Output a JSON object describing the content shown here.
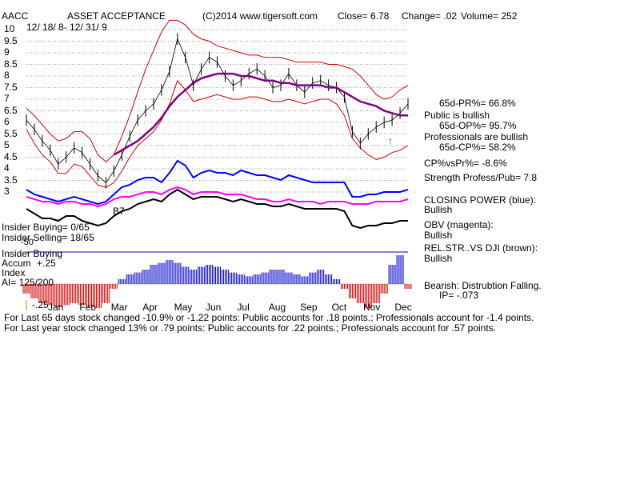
{
  "header": {
    "ticker": "AACC",
    "company": "ASSET ACCEPTANCE",
    "copyright": "(C)2014 www.tigersoft.com",
    "close": "Close=  6.78",
    "change": "Change= .02",
    "volume": "Volume= 252",
    "date_range": "12/ 18/ 8- 12/ 31/ 9"
  },
  "yaxis_ticks": [
    "10",
    "9.5",
    "9",
    "8.5",
    "8",
    "7.5",
    "7",
    "6.5",
    "6",
    "5.5",
    "5",
    "4.5",
    "4",
    "3.5",
    "3"
  ],
  "months": [
    "Jan",
    "Feb",
    "Mar",
    "Apr",
    "May",
    "Jun",
    "Jul",
    "Aug",
    "Sep",
    "Oct",
    "Nov",
    "Dec"
  ],
  "right_panel": {
    "pr": "65d-PR%= 66.8%",
    "public": "Public is bullish",
    "op": "65d-OP%= 95.7%",
    "professionals": "Professionals are bullish",
    "cp": "65d-CP%= 58.2%",
    "cpvspr": "CP%vsPr%= -8.6%",
    "strength": "Strength Profess/Pub= 7.8",
    "closing_power": "CLOSING POWER (blue):",
    "closing_power_val": "Bullish",
    "obv": "OBV (magenta):",
    "obv_val": "Bullish",
    "relstr": "REL.STR..VS DJI (brown):",
    "relstr_val": "Bullish",
    "bearish": "Bearish: Distrubtion Falling.",
    "ip": "IP= -.073"
  },
  "left_panel": {
    "insider_buying": "Insider Buying= 0/65",
    "insider_selling": "Insider Selling= 18/65",
    "insider_buying2": "Insider Buying",
    "accum": "Accum",
    "plus25": "+.25",
    "index": "Index",
    "ai": "AI= 125/200",
    "minus25": "-.25",
    "b7": "B7",
    "minus50": "-50"
  },
  "footer": {
    "line1": "For Last 65 days stock changed -10.9% or -1.22 points:  Public accounts for  .18 points.;  Professionals account for  -1.4 points.",
    "line2": "For Last year stock changed  13% or  .79 points:  Public accounts for  .22 points.;  Professionals account for  .57 points."
  },
  "colors": {
    "price": "#000000",
    "band": "#cc0000",
    "ma": "#800080",
    "closing_power": "#0000ff",
    "obv": "#ff00ff",
    "relstr": "#000000",
    "accum_pos": "#0000cc",
    "accum_neg": "#cc0000"
  },
  "chart_data": {
    "type": "line",
    "y_range": [
      3,
      10
    ],
    "price": [
      6.1,
      5.7,
      5.2,
      4.8,
      4.2,
      4.5,
      4.9,
      4.7,
      4.2,
      3.7,
      3.4,
      3.9,
      4.6,
      5.4,
      6.1,
      6.5,
      6.8,
      7.4,
      8.2,
      9.6,
      8.8,
      7.6,
      8.3,
      8.8,
      8.6,
      8.0,
      7.6,
      7.8,
      8.1,
      8.3,
      8.0,
      7.5,
      7.6,
      8.1,
      7.6,
      7.3,
      7.7,
      7.8,
      7.6,
      7.5,
      7.1,
      5.6,
      5.1,
      5.5,
      5.8,
      6.0,
      6.1,
      6.4,
      6.8
    ],
    "ma": [
      null,
      null,
      null,
      null,
      null,
      null,
      null,
      null,
      null,
      null,
      null,
      4.6,
      4.8,
      5.0,
      5.2,
      5.5,
      5.8,
      6.2,
      6.7,
      7.1,
      7.4,
      7.7,
      7.9,
      8.0,
      8.1,
      8.1,
      8.1,
      8.0,
      8.0,
      7.9,
      7.8,
      7.8,
      7.7,
      7.7,
      7.6,
      7.6,
      7.6,
      7.6,
      7.5,
      7.5,
      7.3,
      7.1,
      6.9,
      6.8,
      6.7,
      6.5,
      6.4,
      6.3,
      6.3
    ],
    "upper_band": [
      6.6,
      6.3,
      5.9,
      5.5,
      5.2,
      5.3,
      5.6,
      5.6,
      5.3,
      4.6,
      4.3,
      4.6,
      5.4,
      6.3,
      7.3,
      8.3,
      9.1,
      9.9,
      10.4,
      10.4,
      10.2,
      9.8,
      9.6,
      9.5,
      9.3,
      9.2,
      9.1,
      9.0,
      8.9,
      8.9,
      8.8,
      8.8,
      8.8,
      8.7,
      8.6,
      8.6,
      8.6,
      8.6,
      8.5,
      8.5,
      8.4,
      8.3,
      8.0,
      7.6,
      7.2,
      7.0,
      7.1,
      7.4,
      7.6
    ],
    "lower_band": [
      5.7,
      5.1,
      4.6,
      4.3,
      3.8,
      3.8,
      4.2,
      4.1,
      3.7,
      3.3,
      3.2,
      3.4,
      3.9,
      4.5,
      5.0,
      5.3,
      5.6,
      6.1,
      6.8,
      7.8,
      7.4,
      6.9,
      7.0,
      7.1,
      7.2,
      7.1,
      7.0,
      7.0,
      7.1,
      7.1,
      7.0,
      6.9,
      6.9,
      7.0,
      6.9,
      6.8,
      6.9,
      7.0,
      7.0,
      6.8,
      6.3,
      5.3,
      4.9,
      4.6,
      4.4,
      4.5,
      4.7,
      4.8,
      5.0
    ],
    "closing_power": [
      3.1,
      2.9,
      2.8,
      2.7,
      2.6,
      2.7,
      2.8,
      2.7,
      2.6,
      2.5,
      2.6,
      2.9,
      3.2,
      3.3,
      3.5,
      3.6,
      3.6,
      3.4,
      3.8,
      4.3,
      4.1,
      3.6,
      3.8,
      3.9,
      3.8,
      3.8,
      3.7,
      3.9,
      3.8,
      3.7,
      3.7,
      3.6,
      3.5,
      3.7,
      3.6,
      3.5,
      3.4,
      3.4,
      3.4,
      3.4,
      3.4,
      2.8,
      2.8,
      2.9,
      2.9,
      3.0,
      3.0,
      3.0,
      3.1
    ],
    "obv": [
      2.8,
      2.7,
      2.6,
      2.6,
      2.5,
      2.6,
      2.6,
      2.5,
      2.5,
      2.4,
      2.5,
      2.7,
      2.8,
      2.8,
      2.9,
      3.0,
      3.0,
      2.9,
      3.1,
      3.2,
      3.1,
      2.9,
      3.0,
      3.0,
      3.0,
      2.9,
      2.9,
      2.9,
      2.8,
      2.7,
      2.7,
      2.6,
      2.6,
      2.7,
      2.6,
      2.6,
      2.6,
      2.5,
      2.6,
      2.6,
      2.6,
      2.5,
      2.5,
      2.5,
      2.6,
      2.6,
      2.6,
      2.6,
      2.7
    ],
    "relstr": [
      2.3,
      2.1,
      1.9,
      1.9,
      1.8,
      2.0,
      2.0,
      1.8,
      1.7,
      1.6,
      1.7,
      2.0,
      2.2,
      2.3,
      2.5,
      2.6,
      2.7,
      2.6,
      2.9,
      3.1,
      2.9,
      2.7,
      2.8,
      2.8,
      2.8,
      2.7,
      2.6,
      2.7,
      2.6,
      2.5,
      2.5,
      2.4,
      2.4,
      2.5,
      2.4,
      2.3,
      2.3,
      2.3,
      2.3,
      2.3,
      2.2,
      1.6,
      1.5,
      1.6,
      1.6,
      1.7,
      1.7,
      1.8,
      1.8
    ],
    "accum": [
      -0.1,
      -0.15,
      -0.2,
      -0.22,
      -0.24,
      -0.22,
      -0.2,
      -0.22,
      -0.24,
      -0.25,
      -0.2,
      -0.05,
      0.05,
      0.1,
      0.12,
      0.15,
      0.2,
      0.22,
      0.25,
      0.22,
      0.18,
      0.15,
      0.18,
      0.2,
      0.18,
      0.15,
      0.12,
      0.1,
      0.08,
      0.1,
      0.12,
      0.15,
      0.15,
      0.12,
      0.1,
      0.08,
      0.12,
      0.15,
      0.1,
      0.05,
      -0.05,
      -0.15,
      -0.2,
      -0.25,
      -0.2,
      -0.1,
      0.2,
      0.3,
      -0.05
    ]
  }
}
